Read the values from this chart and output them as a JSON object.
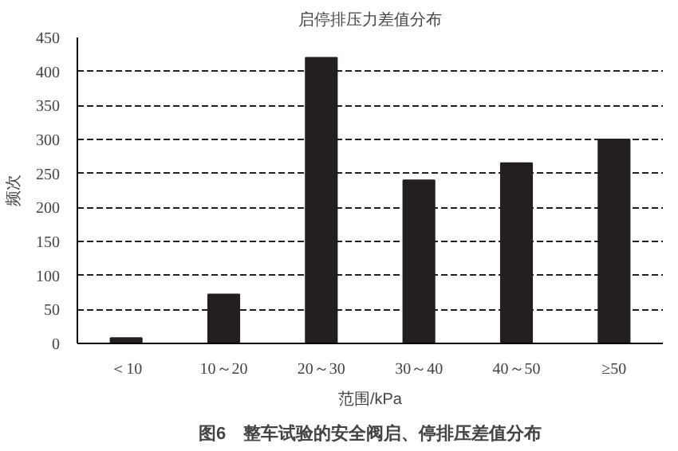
{
  "chart_data": {
    "type": "bar",
    "title": "启停排压力差值分布",
    "xlabel": "范围/kPa",
    "ylabel": "频次",
    "categories": [
      "＜10",
      "10～20",
      "20～30",
      "30～40",
      "40～50",
      "≥50"
    ],
    "values": [
      8,
      72,
      420,
      240,
      265,
      300
    ],
    "color": "#231f20",
    "ylim": [
      0,
      450
    ],
    "yticks": [
      0,
      50,
      100,
      150,
      200,
      250,
      300,
      350,
      400,
      450
    ],
    "grid": "y",
    "annotations": [
      "图6　整车试验的安全阀启、停排压差值分布"
    ]
  }
}
